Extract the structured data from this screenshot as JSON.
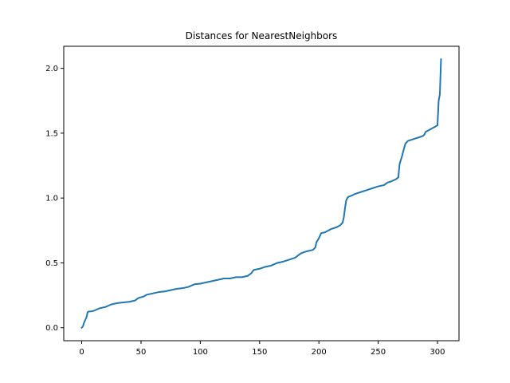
{
  "chart_data": {
    "type": "line",
    "title": "Distances for NearestNeighbors",
    "xlabel": "",
    "ylabel": "",
    "xlim": [
      -15.15,
      318.15
    ],
    "ylim": [
      -0.1,
      2.17
    ],
    "xticks": [
      0,
      50,
      100,
      150,
      200,
      250,
      300
    ],
    "yticks": [
      0.0,
      0.5,
      1.0,
      1.5,
      2.0
    ],
    "xtick_labels": [
      "0",
      "50",
      "100",
      "150",
      "200",
      "250",
      "300"
    ],
    "ytick_labels": [
      "0.0",
      "0.5",
      "1.0",
      "1.5",
      "2.0"
    ],
    "grid": false,
    "series": [
      {
        "color": "#1f77b4",
        "x": [
          0,
          1,
          2,
          3,
          4,
          5,
          6,
          7,
          10,
          15,
          20,
          25,
          30,
          35,
          40,
          45,
          48,
          50,
          52,
          55,
          60,
          65,
          70,
          75,
          80,
          85,
          90,
          95,
          100,
          105,
          110,
          115,
          120,
          125,
          130,
          135,
          140,
          143,
          145,
          150,
          155,
          160,
          165,
          170,
          175,
          180,
          185,
          190,
          195,
          197,
          198,
          200,
          201,
          202,
          205,
          210,
          215,
          218,
          220,
          221,
          222,
          223,
          224,
          225,
          228,
          230,
          235,
          240,
          245,
          250,
          255,
          258,
          260,
          265,
          267,
          268,
          270,
          272,
          273,
          275,
          280,
          285,
          288,
          289,
          290,
          295,
          300,
          301,
          302,
          303
        ],
        "y": [
          0.0,
          0.01,
          0.04,
          0.06,
          0.08,
          0.12,
          0.125,
          0.125,
          0.13,
          0.15,
          0.16,
          0.18,
          0.19,
          0.195,
          0.2,
          0.21,
          0.23,
          0.235,
          0.24,
          0.255,
          0.265,
          0.275,
          0.28,
          0.29,
          0.3,
          0.305,
          0.315,
          0.335,
          0.34,
          0.35,
          0.36,
          0.37,
          0.38,
          0.38,
          0.39,
          0.39,
          0.4,
          0.42,
          0.445,
          0.455,
          0.47,
          0.48,
          0.5,
          0.51,
          0.525,
          0.54,
          0.575,
          0.59,
          0.6,
          0.62,
          0.66,
          0.69,
          0.71,
          0.73,
          0.735,
          0.76,
          0.775,
          0.79,
          0.81,
          0.85,
          0.92,
          0.98,
          1.0,
          1.01,
          1.02,
          1.03,
          1.045,
          1.06,
          1.075,
          1.09,
          1.1,
          1.12,
          1.125,
          1.145,
          1.16,
          1.26,
          1.32,
          1.39,
          1.42,
          1.44,
          1.455,
          1.47,
          1.48,
          1.49,
          1.51,
          1.535,
          1.56,
          1.75,
          1.8,
          2.07
        ]
      }
    ]
  }
}
